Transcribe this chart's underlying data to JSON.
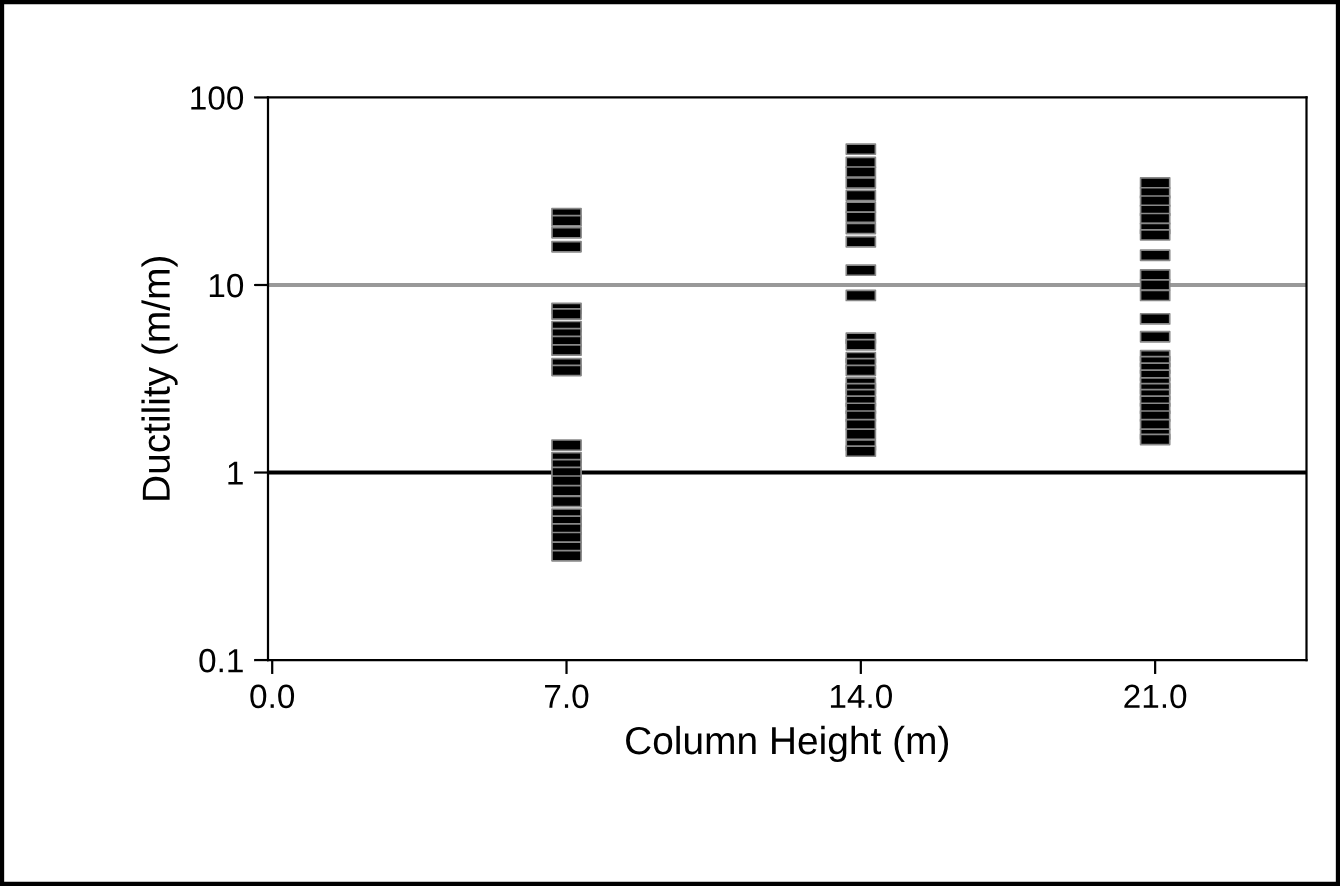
{
  "chart_data": {
    "type": "scatter",
    "xlabel": "Column Height (m)",
    "ylabel": "Ductility (m/m)",
    "log": "y",
    "marker": "square",
    "grid": false,
    "legend": false,
    "xlim": [
      -0.1,
      24.6
    ],
    "xticks": [
      {
        "value": 0,
        "label": "0.0"
      },
      {
        "value": 7,
        "label": "7.0"
      },
      {
        "value": 14,
        "label": "14.0"
      },
      {
        "value": 21,
        "label": "21.0"
      }
    ],
    "ylim": [
      0.1,
      100
    ],
    "yticks": [
      0.1,
      1,
      10,
      100
    ],
    "ref_lines": [
      {
        "axis": "y",
        "value": 10,
        "color": "#999999"
      },
      {
        "axis": "y",
        "value": 1,
        "color": "#000000"
      }
    ],
    "series": [
      {
        "color": "#000000",
        "x": [
          7,
          7,
          7,
          7,
          7,
          7,
          7,
          7,
          7,
          7,
          7,
          7,
          7,
          7,
          7,
          7,
          7,
          7,
          7,
          7,
          7,
          7,
          7,
          7,
          7
        ],
        "values": [
          24,
          22,
          19,
          16,
          7.5,
          7,
          6,
          5.5,
          5,
          4.5,
          3.8,
          3.5,
          1.4,
          1.2,
          1.1,
          1.0,
          0.9,
          0.8,
          0.7,
          0.6,
          0.55,
          0.5,
          0.45,
          0.4,
          0.36
        ]
      },
      {
        "color": "#000000",
        "x": [
          14,
          14,
          14,
          14,
          14,
          14,
          14,
          14,
          14,
          14,
          14,
          14,
          14,
          14,
          14,
          14,
          14,
          14,
          14,
          14,
          14,
          14,
          14,
          14,
          14,
          14
        ],
        "values": [
          53,
          45,
          40,
          35,
          30,
          26,
          23,
          20,
          17,
          12,
          8.8,
          5.2,
          4.8,
          4.1,
          3.8,
          3.5,
          3,
          2.8,
          2.6,
          2.4,
          2.2,
          2,
          1.8,
          1.6,
          1.4,
          1.3
        ]
      },
      {
        "color": "#000000",
        "x": [
          21,
          21,
          21,
          21,
          21,
          21,
          21,
          21,
          21,
          21,
          21,
          21,
          21,
          21,
          21,
          21,
          21,
          21,
          21,
          21,
          21,
          21,
          21,
          21,
          21,
          21
        ],
        "values": [
          35,
          31,
          28,
          25,
          22.6,
          20,
          18.5,
          14.4,
          11.3,
          10,
          8.8,
          6.6,
          5.3,
          4.2,
          3.9,
          3.6,
          3.3,
          3,
          2.8,
          2.6,
          2.4,
          2.2,
          2,
          1.8,
          1.6,
          1.5
        ]
      }
    ]
  }
}
